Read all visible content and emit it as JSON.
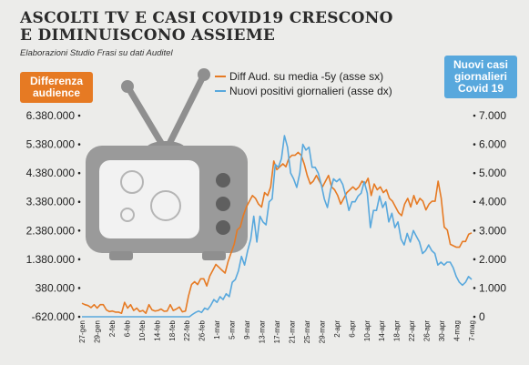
{
  "header": {
    "title_line1": "ASCOLTI TV E CASI COVID19 CRESCONO",
    "title_line2": "E DIMINUISCONO ASSIEME",
    "subtitle": "Elaborazioni Studio Frasi su dati Auditel"
  },
  "badges": {
    "left": "Differenza audience",
    "right": "Nuovi casi giornalieri Covid 19"
  },
  "colors": {
    "audience": "#e67a23",
    "positivi": "#58a8dd",
    "tv_illustration": "#9a9a9a",
    "virus_icon": "#bdbdbd"
  },
  "chart_data": {
    "type": "line",
    "title": "ASCOLTI TV E CASI COVID19 CRESCONO E DIMINUISCONO ASSIEME",
    "legend_position": "top-center",
    "grid": false,
    "x_tick_labels": [
      "27-gen",
      "29-gen",
      "2-feb",
      "6-feb",
      "10-feb",
      "14-feb",
      "18-feb",
      "22-feb",
      "26-feb",
      "1-mar",
      "5-mar",
      "9-mar",
      "13-mar",
      "17-mar",
      "21-mar",
      "25-mar",
      "29-mar",
      "2-apr",
      "6-apr",
      "10-apr",
      "14-apr",
      "18-apr",
      "22-apr",
      "26-apr",
      "30-apr",
      "4-mag",
      "7-mag"
    ],
    "y_left": {
      "ylim": [
        -620000,
        6380000
      ],
      "tick_labels": [
        "6.380.000",
        "5.380.000",
        "4.380.000",
        "3.380.000",
        "2.380.000",
        "1.380.000",
        "380.000",
        "-620.000"
      ]
    },
    "y_right": {
      "ylim": [
        0,
        7000
      ],
      "tick_labels": [
        "7.000",
        "6.000",
        "5.000",
        "4.000",
        "3.000",
        "2.000",
        "1.000",
        "0"
      ]
    },
    "series": [
      {
        "name": "Diff Aud. su media -5y (asse sx)",
        "axis": "left",
        "values": [
          -150000,
          -200000,
          -230000,
          -300000,
          -200000,
          -320000,
          -200000,
          -200000,
          -380000,
          -440000,
          -420000,
          -460000,
          -460000,
          -500000,
          -120000,
          -320000,
          -200000,
          -400000,
          -320000,
          -440000,
          -400000,
          -500000,
          -200000,
          -380000,
          -420000,
          -400000,
          -350000,
          -430000,
          -420000,
          -200000,
          -400000,
          -350000,
          -280000,
          -450000,
          -420000,
          100000,
          500000,
          600000,
          500000,
          700000,
          700000,
          450000,
          800000,
          1000000,
          1200000,
          1100000,
          1000000,
          900000,
          1300000,
          1600000,
          1900000,
          2400000,
          2500000,
          2900000,
          3200000,
          3400000,
          3600000,
          3500000,
          3300000,
          3200000,
          3700000,
          3600000,
          3900000,
          4800000,
          4500000,
          4600000,
          4700000,
          4600000,
          4900000,
          5000000,
          5000000,
          5100000,
          5000000,
          4700000,
          4300000,
          4000000,
          4100000,
          4300000,
          4100000,
          3900000,
          4100000,
          4300000,
          3900000,
          3800000,
          3600000,
          3300000,
          3500000,
          3700000,
          3800000,
          3900000,
          3800000,
          3900000,
          4100000,
          4000000,
          4200000,
          3600000,
          4000000,
          3800000,
          3900000,
          3700000,
          3800000,
          3500000,
          3400000,
          3200000,
          3000000,
          2900000,
          3300000,
          3500000,
          3200000,
          3600000,
          3300000,
          3500000,
          3400000,
          3100000,
          3300000,
          3400000,
          3400000,
          4100000,
          3500000,
          2500000,
          2400000,
          1900000,
          1850000,
          1800000,
          1800000,
          2000000,
          2000000,
          2250000,
          2300000
        ]
      },
      {
        "name": "Nuovi positivi giornalieri (asse dx)",
        "axis": "right",
        "values": [
          0,
          0,
          0,
          0,
          0,
          0,
          0,
          0,
          0,
          0,
          0,
          0,
          0,
          0,
          0,
          0,
          0,
          0,
          0,
          0,
          0,
          0,
          0,
          0,
          0,
          0,
          0,
          0,
          0,
          0,
          0,
          0,
          0,
          0,
          0,
          0,
          80,
          150,
          200,
          150,
          300,
          250,
          400,
          600,
          500,
          700,
          600,
          800,
          700,
          1200,
          1300,
          1600,
          2100,
          1800,
          2300,
          2700,
          3500,
          2600,
          3500,
          3300,
          3200,
          4000,
          4100,
          5300,
          5200,
          5500,
          6300,
          5900,
          5000,
          4800,
          4500,
          5000,
          6000,
          5800,
          5900,
          5200,
          5200,
          5000,
          4600,
          4100,
          3800,
          4400,
          4800,
          4700,
          4800,
          4600,
          4200,
          3700,
          4000,
          4000,
          4200,
          4300,
          4700,
          4300,
          3100,
          3700,
          3700,
          4200,
          3800,
          4000,
          3300,
          3600,
          3100,
          3300,
          2700,
          2500,
          2900,
          2600,
          3000,
          2800,
          2600,
          2200,
          2300,
          2500,
          2300,
          2200,
          1800,
          1900,
          1800,
          1900,
          1900,
          1700,
          1400,
          1200,
          1100,
          1200,
          1400,
          1300
        ]
      }
    ]
  }
}
